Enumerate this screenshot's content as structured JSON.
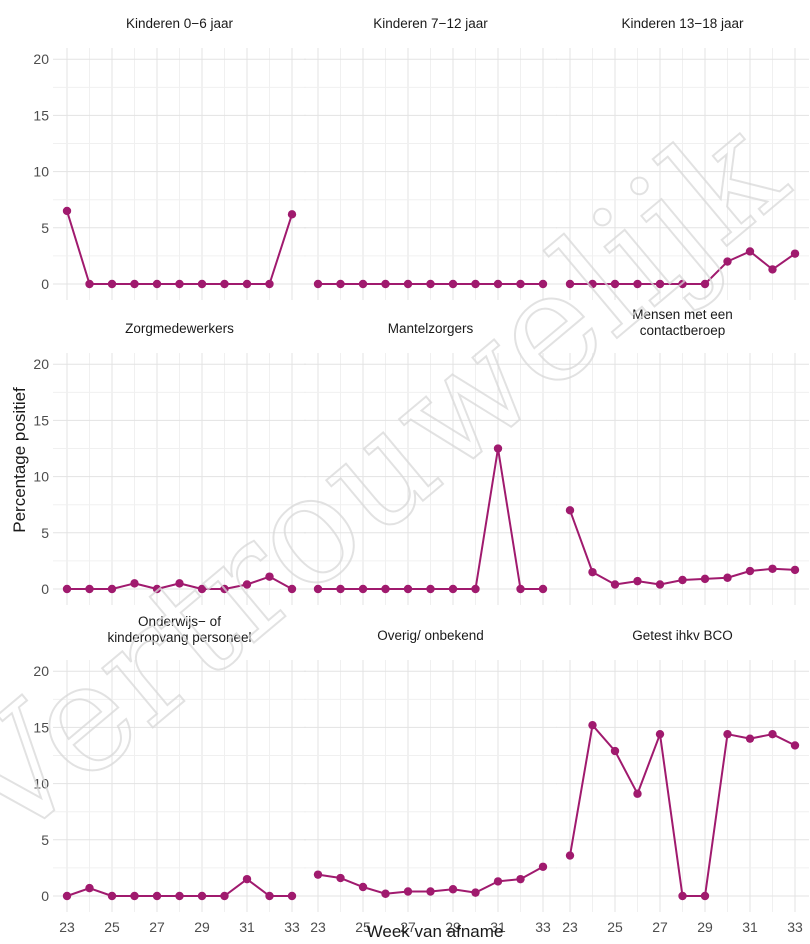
{
  "chart_data": {
    "type": "line",
    "ylabel": "Percentage positief",
    "xlabel": "Week van afname",
    "x": [
      23,
      24,
      25,
      26,
      27,
      28,
      29,
      30,
      31,
      32,
      33
    ],
    "x_ticks": [
      "23",
      "25",
      "27",
      "29",
      "31",
      "33"
    ],
    "y_ticks": [
      "0",
      "5",
      "10",
      "15",
      "20"
    ],
    "ylim": [
      0,
      21
    ],
    "xlim": [
      23,
      33
    ],
    "grid": true,
    "line_color": "#A01A6E",
    "panels": [
      {
        "title": [
          "Kinderen 0−6 jaar"
        ],
        "values": [
          6.5,
          0,
          0,
          0,
          0,
          0,
          0,
          0,
          0,
          0,
          6.2
        ]
      },
      {
        "title": [
          "Kinderen 7−12 jaar"
        ],
        "values": [
          0,
          0,
          0,
          0,
          0,
          0,
          0,
          0,
          0,
          0,
          0
        ]
      },
      {
        "title": [
          "Kinderen 13−18 jaar"
        ],
        "values": [
          0,
          0,
          0,
          0,
          0,
          0,
          0,
          2.0,
          2.9,
          1.3,
          2.7
        ]
      },
      {
        "title": [
          "Zorgmedewerkers"
        ],
        "values": [
          0,
          0,
          0,
          0.5,
          0,
          0.5,
          0,
          0,
          0.4,
          1.1,
          0
        ]
      },
      {
        "title": [
          "Mantelzorgers"
        ],
        "values": [
          0,
          0,
          0,
          0,
          0,
          0,
          0,
          0,
          12.5,
          0,
          0
        ]
      },
      {
        "title": [
          "Mensen met een",
          "contactberoep"
        ],
        "values": [
          7.0,
          1.5,
          0.4,
          0.7,
          0.4,
          0.8,
          0.9,
          1.0,
          1.6,
          1.8,
          1.7
        ]
      },
      {
        "title": [
          "Onderwijs− of",
          "kinderopvang personeel"
        ],
        "values": [
          0,
          0.7,
          0,
          0,
          0,
          0,
          0,
          0,
          1.5,
          0,
          0
        ]
      },
      {
        "title": [
          "Overig/ onbekend"
        ],
        "values": [
          1.9,
          1.6,
          0.8,
          0.2,
          0.4,
          0.4,
          0.6,
          0.3,
          1.3,
          1.5,
          2.6
        ]
      },
      {
        "title": [
          "Getest ihkv BCO"
        ],
        "values": [
          3.6,
          15.2,
          12.9,
          9.1,
          14.4,
          0,
          0,
          14.4,
          14.0,
          14.4,
          13.4
        ]
      }
    ]
  },
  "watermark": "Vertrouwelijk"
}
